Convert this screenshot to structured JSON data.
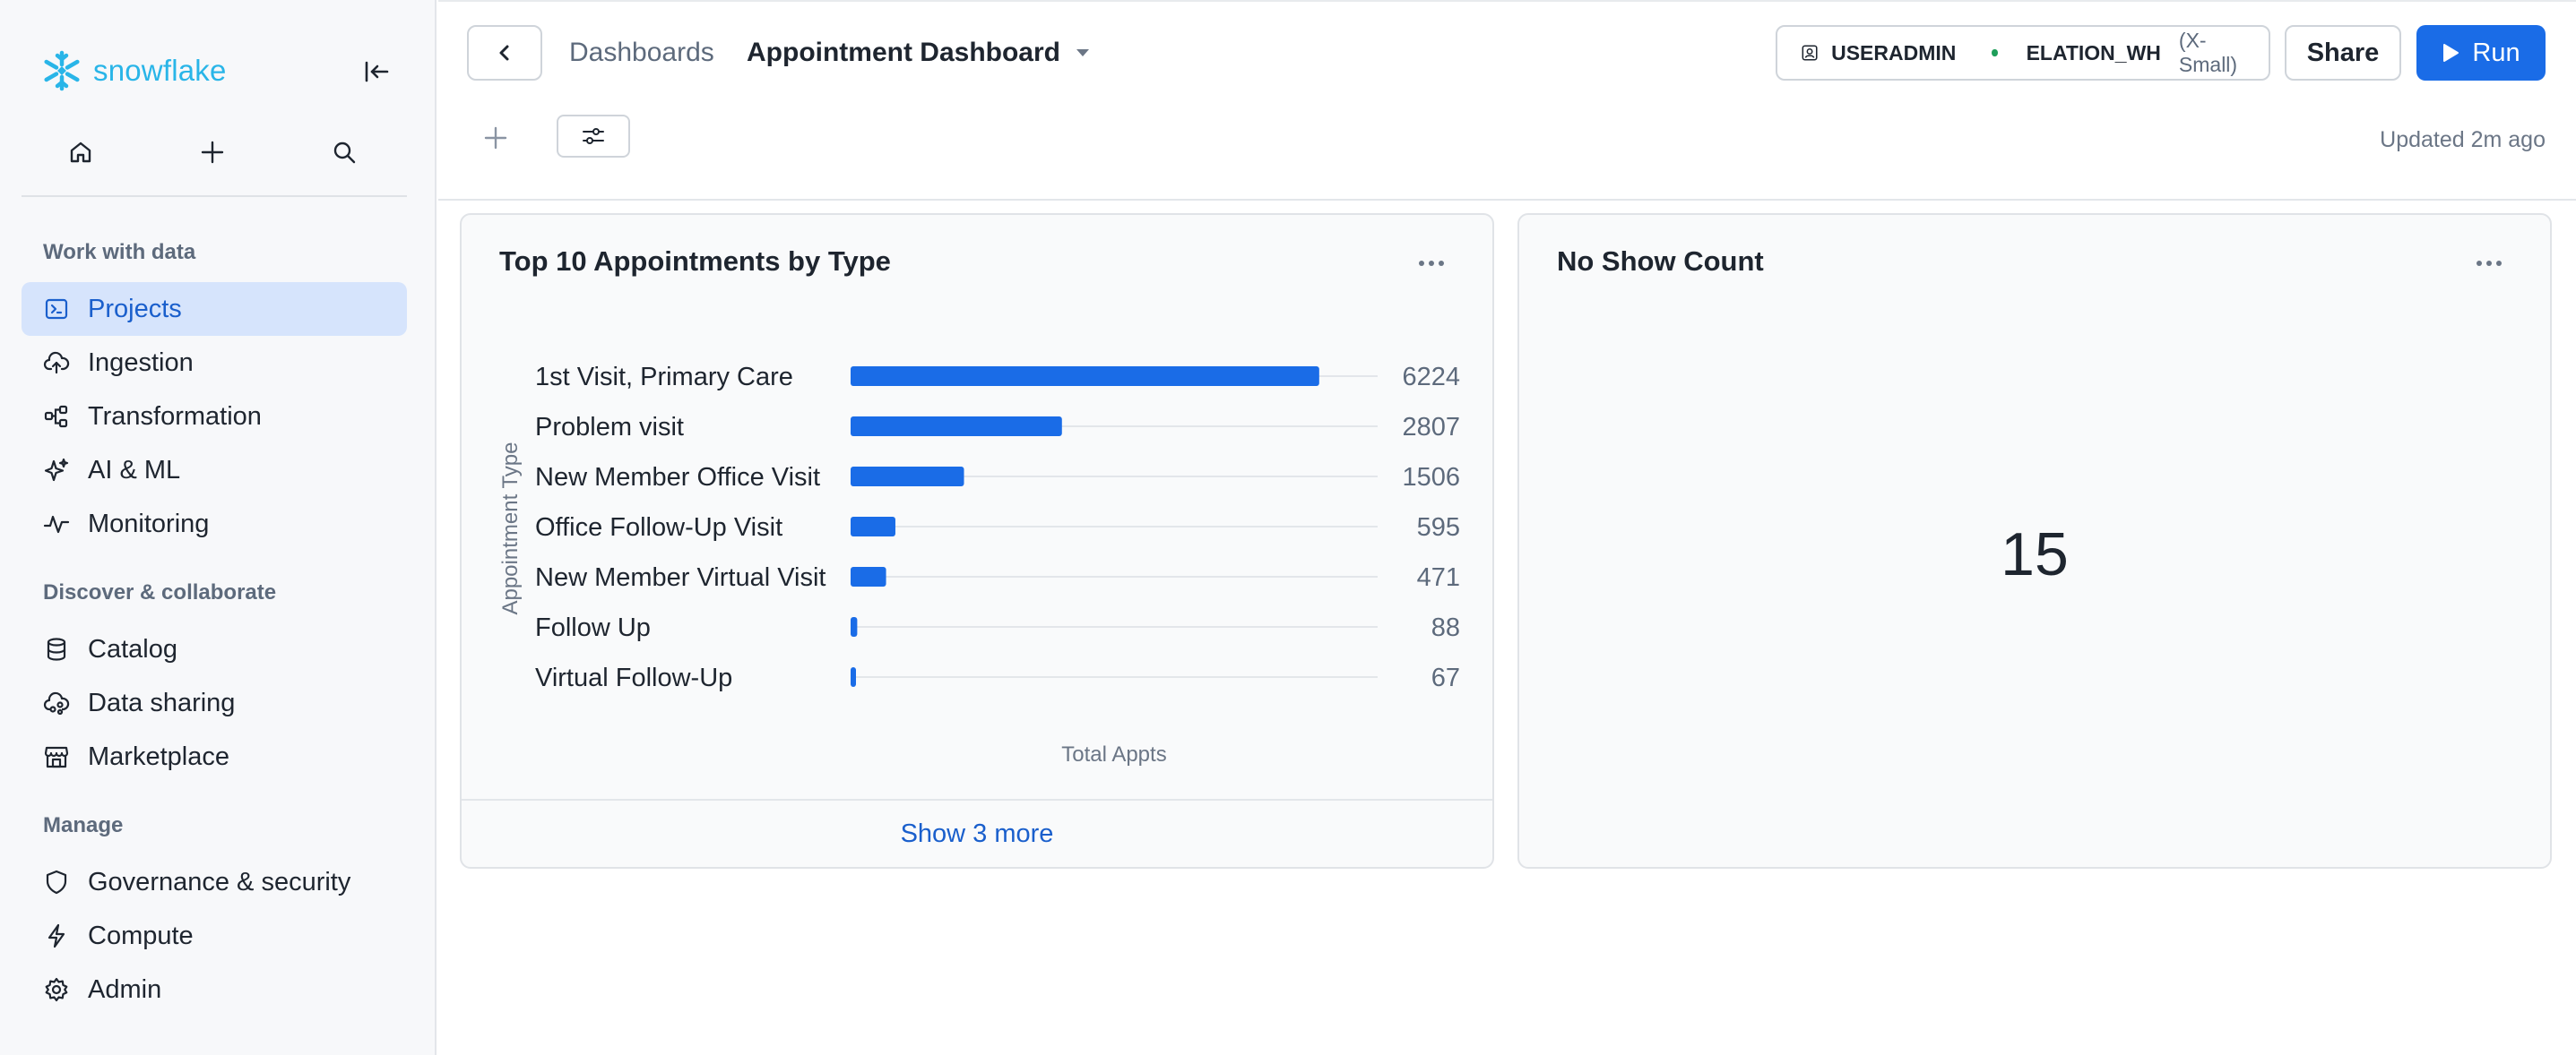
{
  "sidebar": {
    "brand": "snowflake",
    "sections": {
      "work": "Work with data",
      "discover": "Discover & collaborate",
      "manage": "Manage"
    },
    "items": [
      {
        "label": "Projects",
        "icon": "projects-icon"
      },
      {
        "label": "Ingestion",
        "icon": "cloud-upload-icon"
      },
      {
        "label": "Transformation",
        "icon": "transformation-icon"
      },
      {
        "label": "AI & ML",
        "icon": "sparkle-icon"
      },
      {
        "label": "Monitoring",
        "icon": "pulse-icon"
      },
      {
        "label": "Catalog",
        "icon": "database-icon"
      },
      {
        "label": "Data sharing",
        "icon": "share-icon"
      },
      {
        "label": "Marketplace",
        "icon": "store-icon"
      },
      {
        "label": "Governance & security",
        "icon": "shield-icon"
      },
      {
        "label": "Compute",
        "icon": "lightning-icon"
      },
      {
        "label": "Admin",
        "icon": "gear-icon"
      }
    ],
    "active_item": "Projects"
  },
  "header": {
    "breadcrumb": "Dashboards",
    "title": "Appointment Dashboard",
    "role": "USERADMIN",
    "warehouse": "ELATION_WH",
    "warehouse_size": "(X-Small)",
    "share_label": "Share",
    "run_label": "Run",
    "updated": "Updated 2m ago"
  },
  "tiles": {
    "appointments": {
      "title": "Top 10 Appointments by Type",
      "footer": "Show 3 more"
    },
    "no_show": {
      "title": "No Show Count",
      "value": "15"
    }
  },
  "colors": {
    "accent": "#1a6ce7",
    "bar": "#1a6ce7",
    "active_nav_bg": "#d6e4fc",
    "brand": "#29b5e8"
  },
  "chart_data": {
    "type": "bar",
    "orientation": "horizontal",
    "categories": [
      "1st Visit, Primary Care",
      "Problem visit",
      "New Member Office Visit",
      "Office Follow-Up Visit",
      "New Member Virtual Visit",
      "Follow Up",
      "Virtual Follow-Up"
    ],
    "values": [
      6224,
      2807,
      1506,
      595,
      471,
      88,
      67
    ],
    "title": "Top 10 Appointments by Type",
    "xlabel": "Total Appts",
    "ylabel": "Appointment Type",
    "xlim": [
      0,
      7000
    ],
    "grid": false,
    "data_labels": true
  }
}
